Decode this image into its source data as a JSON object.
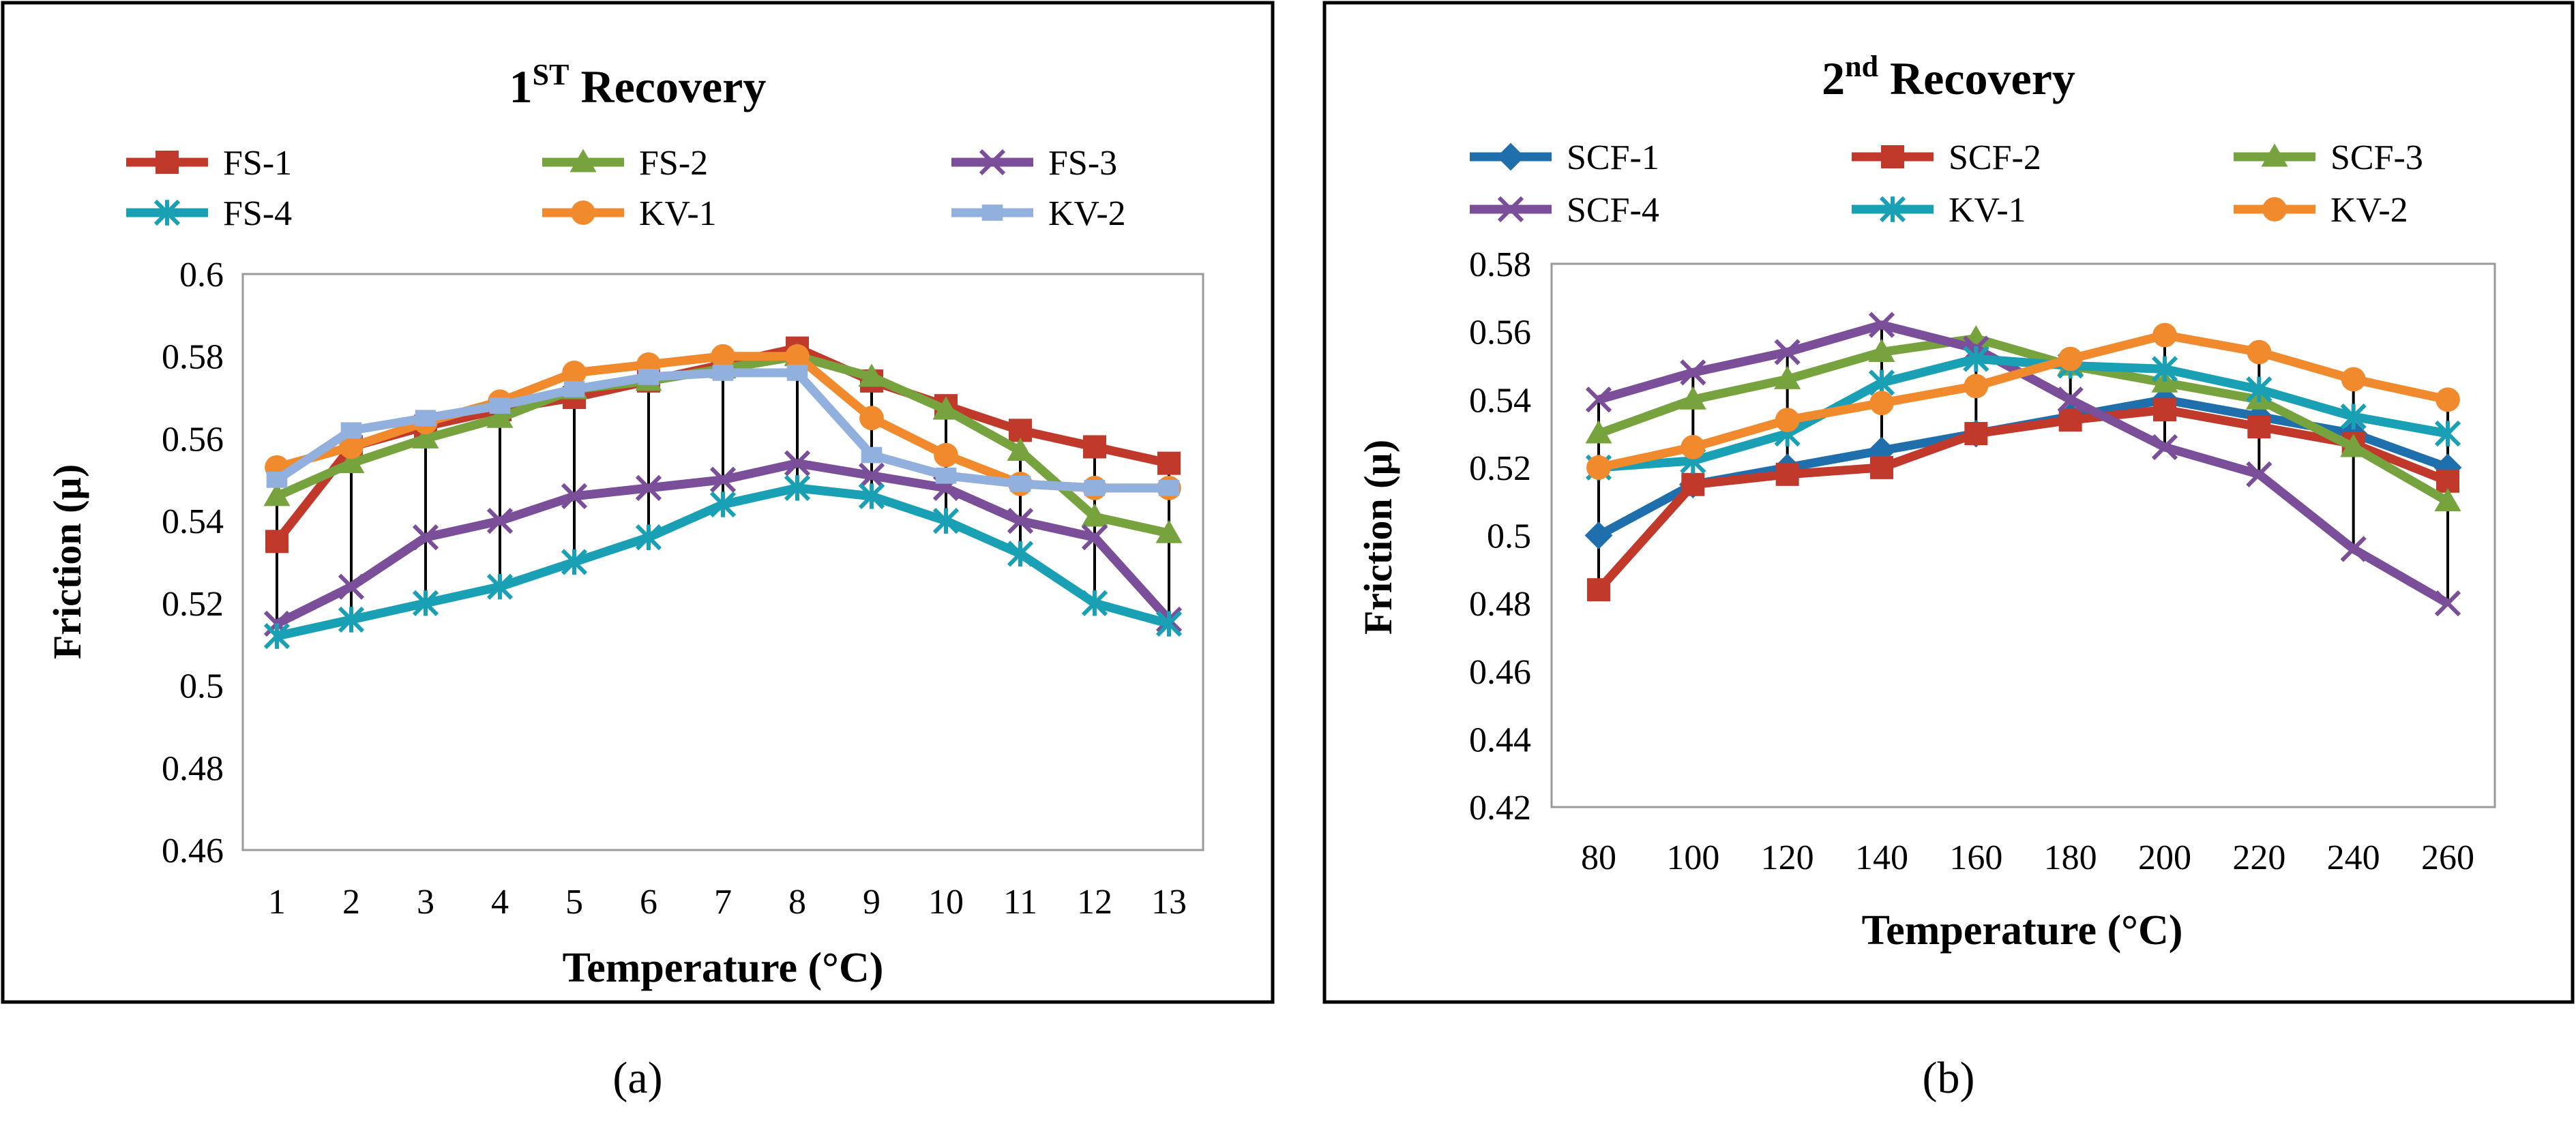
{
  "colors": {
    "FS-1": "#c0392b",
    "FS-2": "#76a33e",
    "FS-3": "#7a4e99",
    "FS-4": "#1aa0b5",
    "KV-1a": "#f08a2c",
    "KV-2a": "#92b0dd",
    "SCF-1": "#1f6fad",
    "SCF-2": "#c0392b",
    "SCF-3": "#76a33e",
    "SCF-4": "#7a4e99",
    "KV-1b": "#1aa0b5",
    "KV-2b": "#f08a2c"
  },
  "chart_data": [
    {
      "type": "line",
      "panel_label": "(a)",
      "title_main": "1",
      "title_sup": "ST",
      "title_rest": " Recovery",
      "xlabel": "Temperature (°C)",
      "ylabel": "Friction (µ)",
      "x": [
        1,
        2,
        3,
        4,
        5,
        6,
        7,
        8,
        9,
        10,
        11,
        12,
        13
      ],
      "ylim": [
        0.46,
        0.6
      ],
      "yticks": [
        0.46,
        0.48,
        0.5,
        0.52,
        0.54,
        0.56,
        0.58,
        0.6
      ],
      "ytick_labels": [
        "0.46",
        "0.48",
        "0.5",
        "0.52",
        "0.54",
        "0.56",
        "0.58",
        "0.6"
      ],
      "legend": "top, 3 columns",
      "series": [
        {
          "name": "FS-1",
          "marker": "square",
          "color_key": "FS-1",
          "values": [
            0.535,
            0.558,
            0.563,
            0.567,
            0.57,
            0.574,
            0.578,
            0.582,
            0.574,
            0.568,
            0.562,
            0.558,
            0.554
          ]
        },
        {
          "name": "FS-2",
          "marker": "triangle",
          "color_key": "FS-2",
          "values": [
            0.546,
            0.554,
            0.56,
            0.565,
            0.572,
            0.574,
            0.577,
            0.58,
            0.575,
            0.567,
            0.557,
            0.541,
            0.537
          ]
        },
        {
          "name": "FS-3",
          "marker": "x",
          "color_key": "FS-3",
          "values": [
            0.515,
            0.524,
            0.536,
            0.54,
            0.546,
            0.548,
            0.55,
            0.554,
            0.551,
            0.548,
            0.54,
            0.536,
            0.516
          ]
        },
        {
          "name": "FS-4",
          "marker": "star",
          "color_key": "FS-4",
          "values": [
            0.512,
            0.516,
            0.52,
            0.524,
            0.53,
            0.536,
            0.544,
            0.548,
            0.546,
            0.54,
            0.532,
            0.52,
            0.515
          ]
        },
        {
          "name": "KV-1",
          "marker": "circle",
          "color_key": "KV-1a",
          "values": [
            0.553,
            0.558,
            0.564,
            0.569,
            0.576,
            0.578,
            0.58,
            0.58,
            0.565,
            0.556,
            0.549,
            0.548,
            0.548
          ]
        },
        {
          "name": "KV-2",
          "marker": "dash",
          "color_key": "KV-2a",
          "values": [
            0.55,
            0.562,
            0.565,
            0.568,
            0.572,
            0.575,
            0.576,
            0.576,
            0.556,
            0.551,
            0.549,
            0.548,
            0.548
          ]
        }
      ]
    },
    {
      "type": "line",
      "panel_label": "(b)",
      "title_main": "2",
      "title_sup": "nd",
      "title_rest": " Recovery",
      "xlabel": "Temperature (°C)",
      "ylabel": "Friction (µ)",
      "x": [
        80,
        100,
        120,
        140,
        160,
        180,
        200,
        220,
        240,
        260
      ],
      "ylim": [
        0.42,
        0.58
      ],
      "yticks": [
        0.42,
        0.44,
        0.46,
        0.48,
        0.5,
        0.52,
        0.54,
        0.56,
        0.58
      ],
      "ytick_labels": [
        "0.42",
        "0.44",
        "0.46",
        "0.48",
        "0.5",
        "0.52",
        "0.54",
        "0.56",
        "0.58"
      ],
      "legend": "top, 3 columns",
      "series": [
        {
          "name": "SCF-1",
          "marker": "diamond",
          "color_key": "SCF-1",
          "values": [
            0.5,
            0.515,
            0.52,
            0.525,
            0.53,
            0.535,
            0.54,
            0.535,
            0.53,
            0.52
          ]
        },
        {
          "name": "SCF-2",
          "marker": "square",
          "color_key": "SCF-2",
          "values": [
            0.484,
            0.515,
            0.518,
            0.52,
            0.53,
            0.534,
            0.537,
            0.532,
            0.527,
            0.516
          ]
        },
        {
          "name": "SCF-3",
          "marker": "triangle",
          "color_key": "SCF-3",
          "values": [
            0.53,
            0.54,
            0.546,
            0.554,
            0.558,
            0.55,
            0.545,
            0.54,
            0.526,
            0.51
          ]
        },
        {
          "name": "SCF-4",
          "marker": "x",
          "color_key": "SCF-4",
          "values": [
            0.54,
            0.548,
            0.554,
            0.562,
            0.555,
            0.54,
            0.526,
            0.518,
            0.496,
            0.48
          ]
        },
        {
          "name": "KV-1",
          "marker": "star",
          "color_key": "KV-1b",
          "values": [
            0.52,
            0.522,
            0.53,
            0.545,
            0.552,
            0.55,
            0.549,
            0.543,
            0.535,
            0.53
          ]
        },
        {
          "name": "KV-2",
          "marker": "circle",
          "color_key": "KV-2b",
          "values": [
            0.52,
            0.526,
            0.534,
            0.539,
            0.544,
            0.552,
            0.559,
            0.554,
            0.546,
            0.54
          ]
        }
      ]
    }
  ]
}
